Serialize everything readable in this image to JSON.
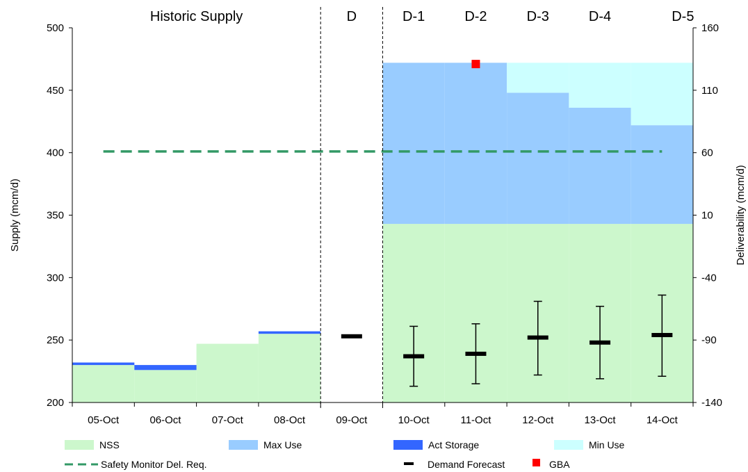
{
  "chart_data": {
    "type": "bar",
    "headers": [
      {
        "text": "Historic Supply",
        "span": [
          0,
          3
        ]
      },
      {
        "text": "D",
        "span": [
          4,
          4
        ]
      },
      {
        "text": "D-1",
        "span": [
          5,
          5
        ]
      },
      {
        "text": "D-2",
        "span": [
          6,
          6
        ]
      },
      {
        "text": "D-3",
        "span": [
          7,
          7
        ]
      },
      {
        "text": "D-4",
        "span": [
          8,
          8
        ]
      },
      {
        "text": "D-5",
        "span": [
          9,
          9
        ]
      }
    ],
    "categories": [
      "05-Oct",
      "06-Oct",
      "07-Oct",
      "08-Oct",
      "09-Oct",
      "10-Oct",
      "11-Oct",
      "12-Oct",
      "13-Oct",
      "14-Oct"
    ],
    "ylabel": "Supply (mcm/d)",
    "ylim": [
      200,
      500
    ],
    "yticks": [
      "200",
      "250",
      "300",
      "350",
      "400",
      "450",
      "500"
    ],
    "y2label": "Deliverability (mcm/d)",
    "y2lim": [
      -140,
      160
    ],
    "y2ticks": [
      "-140",
      "-90",
      "-40",
      "10",
      "60",
      "110",
      "160"
    ],
    "dividers_after_index": [
      3,
      4
    ],
    "colors": {
      "nss": "#ccf7cc",
      "max_use": "#99ccff",
      "act_storage": "#3366ff",
      "min_use": "#ccffff",
      "safety": "#339966",
      "forecast": "#000000",
      "gba": "#ff0000",
      "y2tick": "#00ccff"
    },
    "series": [
      {
        "name": "NSS",
        "kind": "area",
        "values": [
          230,
          226,
          247,
          255,
          null,
          343,
          343,
          343,
          343,
          343
        ]
      },
      {
        "name": "Max Use",
        "kind": "area",
        "values": [
          null,
          null,
          null,
          null,
          null,
          472,
          472,
          448,
          436,
          422
        ]
      },
      {
        "name": "Act Storage",
        "kind": "bar-band",
        "values": [
          [
            230,
            232
          ],
          [
            226,
            230
          ],
          null,
          [
            255,
            257
          ],
          null,
          null,
          null,
          null,
          null,
          null
        ]
      },
      {
        "name": "Min Use",
        "kind": "area",
        "values": [
          null,
          null,
          null,
          null,
          null,
          null,
          null,
          472,
          472,
          472
        ]
      },
      {
        "name": "Safety Monitor Del. Req.",
        "kind": "dashed-line",
        "x_range": [
          0.5,
          9.5
        ],
        "value": 401
      },
      {
        "name": "Demand Forecast",
        "kind": "errorbar",
        "values": [
          null,
          null,
          null,
          null,
          253,
          237,
          239,
          252,
          248,
          254
        ],
        "low": [
          null,
          null,
          null,
          null,
          null,
          213,
          215,
          222,
          219,
          221
        ],
        "high": [
          null,
          null,
          null,
          null,
          null,
          261,
          263,
          281,
          277,
          286
        ]
      },
      {
        "name": "GBA",
        "kind": "marker",
        "points": [
          {
            "category": "11-Oct",
            "value": 471
          }
        ]
      }
    ],
    "legend": {
      "position": "bottom",
      "items": [
        {
          "label": "NSS",
          "swatch": "fill",
          "color": "#ccf7cc"
        },
        {
          "label": "Max Use",
          "swatch": "fill",
          "color": "#99ccff"
        },
        {
          "label": "Act Storage",
          "swatch": "fill",
          "color": "#3366ff"
        },
        {
          "label": "Min Use",
          "swatch": "fill",
          "color": "#ccffff"
        },
        {
          "label": "Safety Monitor Del. Req.",
          "swatch": "dash",
          "color": "#339966"
        },
        {
          "label": "Demand Forecast",
          "swatch": "bar",
          "color": "#000000"
        },
        {
          "label": "GBA",
          "swatch": "square",
          "color": "#ff0000"
        }
      ]
    }
  }
}
